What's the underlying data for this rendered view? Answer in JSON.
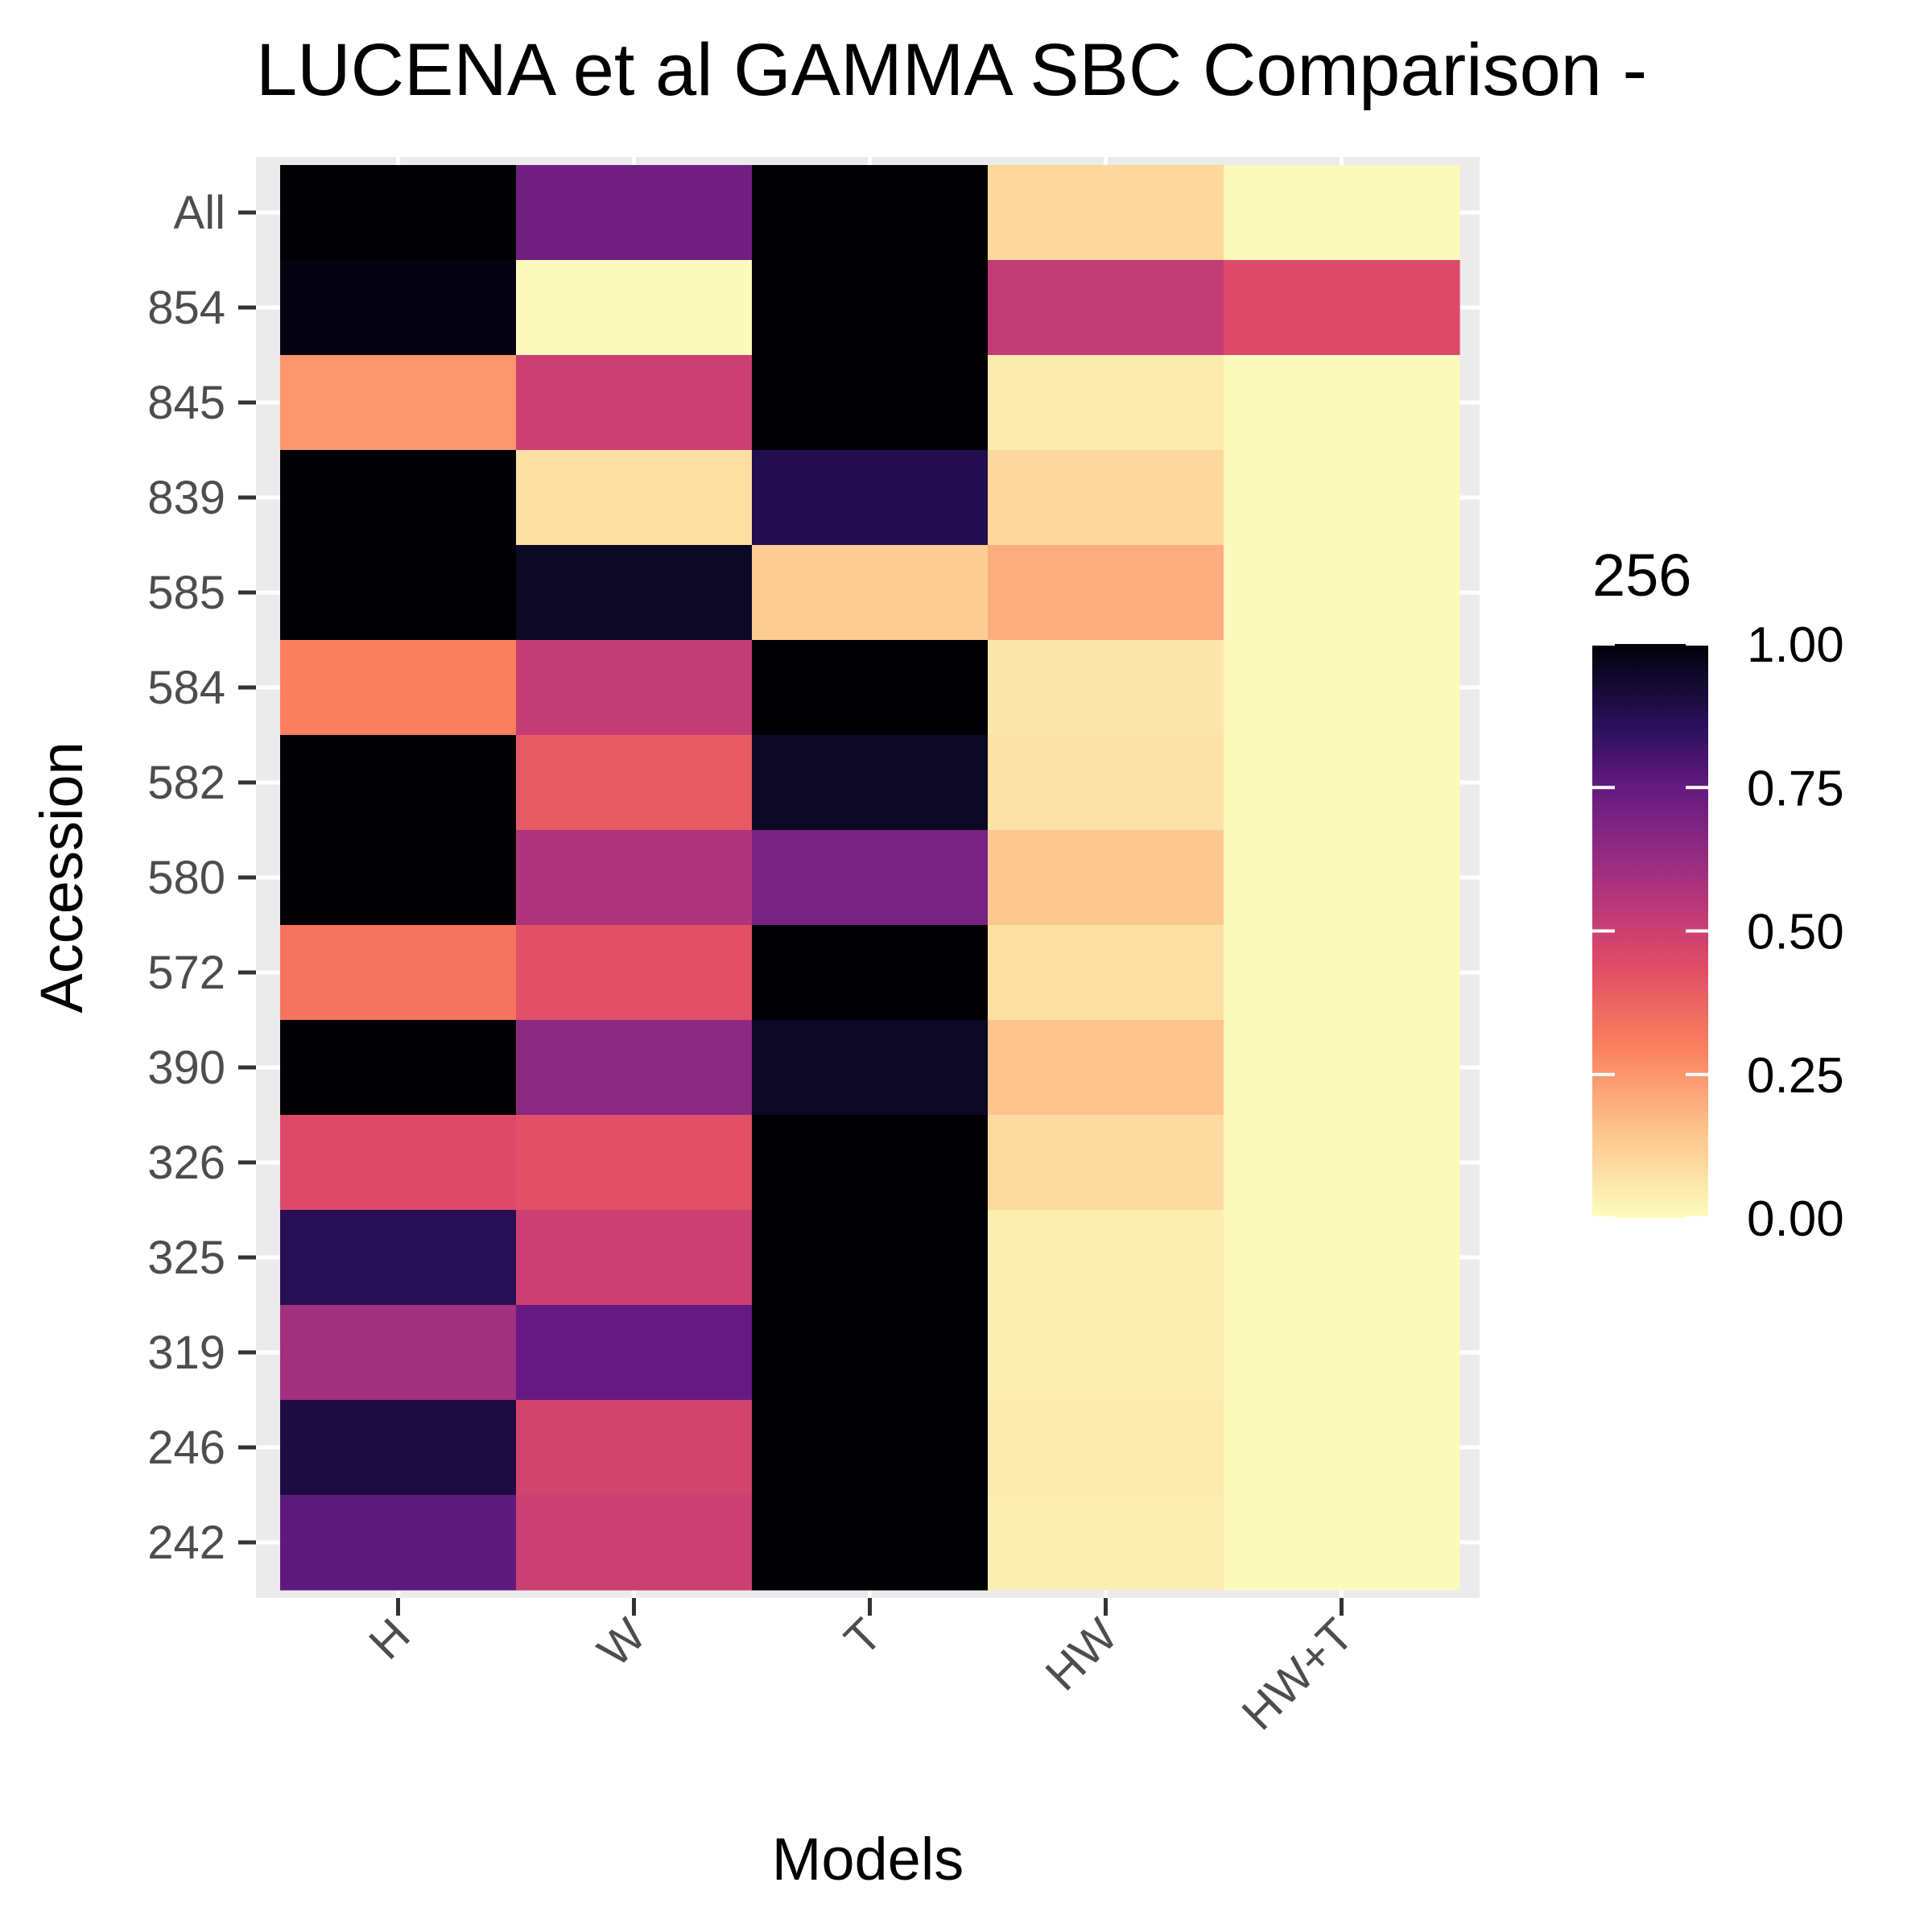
{
  "chart_data": {
    "type": "heatmap",
    "title": "LUCENA et al GAMMA SBC Comparison -",
    "xlabel": "Models",
    "ylabel": "Accession",
    "x_categories": [
      "H",
      "W",
      "T",
      "HW",
      "HW+T"
    ],
    "y_categories": [
      "All",
      "854",
      "845",
      "839",
      "585",
      "584",
      "582",
      "580",
      "572",
      "390",
      "326",
      "325",
      "319",
      "246",
      "242"
    ],
    "values": [
      [
        1.0,
        0.72,
        1.0,
        0.1,
        0.01
      ],
      [
        0.98,
        0.01,
        1.0,
        0.52,
        0.45
      ],
      [
        0.25,
        0.5,
        1.0,
        0.05,
        0.01
      ],
      [
        1.0,
        0.08,
        0.88,
        0.1,
        0.01
      ],
      [
        1.0,
        0.95,
        0.13,
        0.2,
        0.01
      ],
      [
        0.3,
        0.52,
        1.0,
        0.06,
        0.01
      ],
      [
        1.0,
        0.4,
        0.95,
        0.07,
        0.01
      ],
      [
        1.0,
        0.57,
        0.7,
        0.14,
        0.01
      ],
      [
        0.33,
        0.43,
        1.0,
        0.08,
        0.01
      ],
      [
        1.0,
        0.65,
        0.95,
        0.15,
        0.01
      ],
      [
        0.45,
        0.43,
        1.0,
        0.09,
        0.01
      ],
      [
        0.87,
        0.5,
        1.0,
        0.04,
        0.01
      ],
      [
        0.6,
        0.75,
        1.0,
        0.04,
        0.01
      ],
      [
        0.9,
        0.48,
        1.0,
        0.05,
        0.01
      ],
      [
        0.76,
        0.5,
        1.0,
        0.04,
        0.01
      ]
    ],
    "legend": {
      "title": "256",
      "position": "right",
      "range": [
        0,
        1
      ],
      "tick_labels": [
        "1.00",
        "0.75",
        "0.50",
        "0.25",
        "0.00"
      ],
      "tick_values": [
        1.0,
        0.75,
        0.5,
        0.25,
        0.0
      ]
    },
    "colormap": "magma (reversed: 0 = light yellow, 1 = black)",
    "grid": true,
    "panel_background": "#ebebeb"
  }
}
